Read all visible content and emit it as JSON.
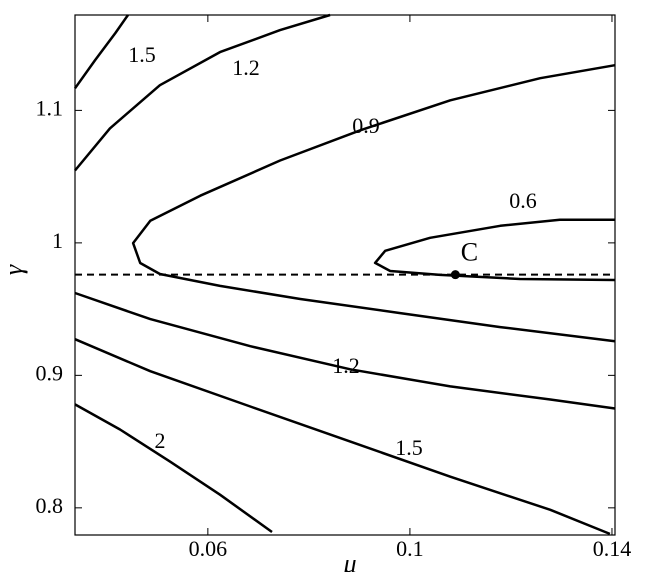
{
  "chart_data": {
    "type": "contour",
    "xlabel": "μ",
    "ylabel": "γ",
    "xlim": [
      0.0337,
      0.1406
    ],
    "ylim": [
      0.7795,
      1.172
    ],
    "xticks": [
      0.06,
      0.1,
      0.14
    ],
    "yticks": [
      0.8,
      0.9,
      1,
      1.1
    ],
    "color": "#000000",
    "contours": [
      {
        "level": 1.5,
        "x": [
          0.0337,
          0.0377,
          0.0417,
          0.0442
        ],
        "y": [
          1.1167,
          1.138,
          1.1584,
          1.172
        ]
      },
      {
        "level": 1.2,
        "x": [
          0.0337,
          0.0406,
          0.0505,
          0.0624,
          0.0743,
          0.0842
        ],
        "y": [
          1.0546,
          1.0864,
          1.119,
          1.144,
          1.1606,
          1.172
        ]
      },
      {
        "level": 0.9,
        "x": [
          0.1406,
          0.1258,
          0.108,
          0.0901,
          0.0743,
          0.0585,
          0.0486,
          0.0452,
          0.0466,
          0.0505,
          0.0624,
          0.0783,
          0.0981,
          0.1179,
          0.1406
        ],
        "y": [
          1.1341,
          1.1243,
          1.1076,
          1.0849,
          1.0622,
          1.0356,
          1.0167,
          0.9998,
          0.9848,
          0.9765,
          0.9675,
          0.9576,
          0.947,
          0.9364,
          0.9258
        ]
      },
      {
        "level": 0.6,
        "x": [
          0.1406,
          0.1297,
          0.1179,
          0.104,
          0.0951,
          0.0931,
          0.0961,
          0.106,
          0.1218,
          0.1406
        ],
        "y": [
          1.0175,
          1.0175,
          1.0129,
          1.0038,
          0.994,
          0.9849,
          0.9788,
          0.9758,
          0.9727,
          0.972
        ]
      },
      {
        "level": 1.2,
        "x": [
          0.0337,
          0.0486,
          0.0684,
          0.0882,
          0.108,
          0.1278,
          0.1406
        ],
        "y": [
          0.9622,
          0.9425,
          0.922,
          0.9046,
          0.8917,
          0.8818,
          0.875
        ]
      },
      {
        "level": 1.5,
        "x": [
          0.0337,
          0.0486,
          0.0684,
          0.0882,
          0.108,
          0.1278,
          0.1396
        ],
        "y": [
          0.9273,
          0.9031,
          0.8765,
          0.85,
          0.8235,
          0.7985,
          0.7803
        ]
      },
      {
        "level": 2,
        "x": [
          0.0337,
          0.0426,
          0.0525,
          0.0624,
          0.0727
        ],
        "y": [
          0.8781,
          0.8591,
          0.8349,
          0.8099,
          0.7818
        ]
      }
    ],
    "hline": 0.976,
    "point": {
      "label": "C",
      "x": 0.109,
      "y": 0.976
    }
  }
}
